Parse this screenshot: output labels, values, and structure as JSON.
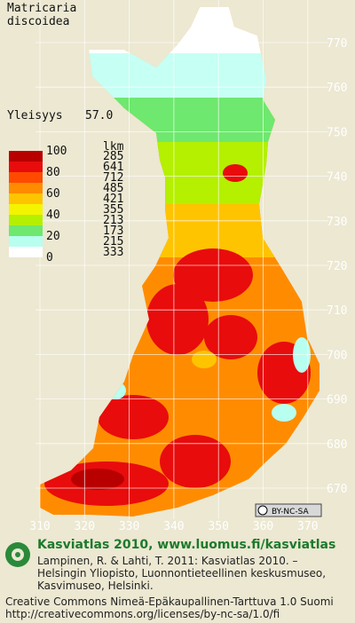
{
  "title_lines": [
    "Matricaria",
    "discoidea"
  ],
  "frequency": {
    "label": "Yleisyys",
    "value": "57.0"
  },
  "legend": {
    "scale_labels": [
      "100",
      "80",
      "60",
      "40",
      "20",
      "0"
    ],
    "count_header": "lkm",
    "counts": [
      "285",
      "641",
      "712",
      "485",
      "421",
      "355",
      "213",
      "173",
      "215",
      "333"
    ],
    "colors": [
      "#b80000",
      "#e80c0c",
      "#ff4a00",
      "#ff8c00",
      "#ffc400",
      "#f4f400",
      "#b4f000",
      "#6ee86e",
      "#b8fff0",
      "#ffffff"
    ]
  },
  "grid": {
    "northing": [
      770,
      760,
      750,
      740,
      730,
      720,
      710,
      700,
      690,
      680,
      670
    ],
    "easting": [
      310,
      320,
      330,
      340,
      350,
      360,
      370
    ]
  },
  "badge": "BY-NC-SA",
  "footer": {
    "site": "Kasviatlas 2010, www.luomus.fi/kasviatlas",
    "citation": [
      "Lampinen, R. & Lahti, T. 2011: Kasviatlas 2010. –",
      "Helsingin Yliopisto, Luonnontieteellinen keskusmuseo,",
      "Kasvimuseo, Helsinki."
    ],
    "license": [
      "Creative Commons Nimeä-Epäkaupallinen-Tarttuva 1.0 Suomi",
      "http://creativecommons.org/licenses/by-nc-sa/1.0/fi"
    ]
  }
}
